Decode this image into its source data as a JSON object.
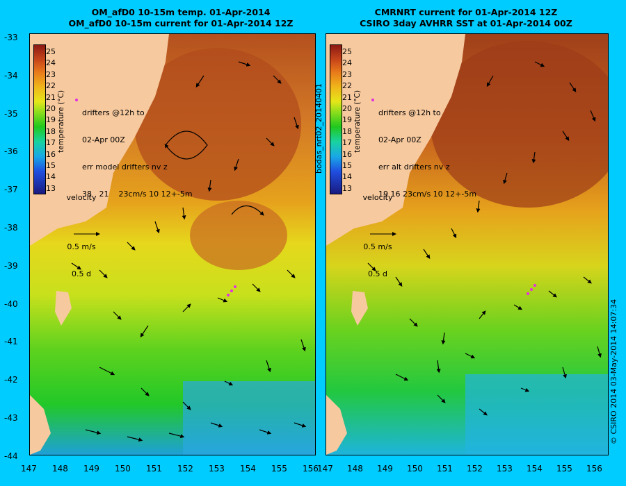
{
  "left_panel": {
    "title_line1": "OM_afD0 10-15m temp. 01-Apr-2014",
    "title_line2": "OM_afD0 10-15m current for 01-Apr-2014 12Z",
    "legend": {
      "drifters_line1": "drifters @12h to",
      "drifters_line2": "02-Apr 00Z",
      "drifters_line3": "err model drifters nv z",
      "drifters_line4": "38   21    23cm/s 10 12+-5m"
    }
  },
  "right_panel": {
    "title_line1": "CMRNRT current for 01-Apr-2014 12Z",
    "title_line2": "CSIRO 3day AVHRR SST at 01-Apr-2014 00Z",
    "legend": {
      "drifters_line1": "drifters @12h to",
      "drifters_line2": "02-Apr 00Z",
      "drifters_line3": "err alt drifters nv z",
      "drifters_line4": "19 16 23cm/s 10 12+-5m"
    }
  },
  "colorbar": {
    "label": "temperature (°C)",
    "ticks": [
      "25",
      "24",
      "23",
      "22",
      "21",
      "20",
      "19",
      "18",
      "17",
      "16",
      "15",
      "14",
      "13"
    ]
  },
  "velocity_legend": {
    "label": "velocity",
    "speed": "0.5 m/s",
    "duration": "0.5 d"
  },
  "y_axis_ticks": [
    "-33",
    "-34",
    "-35",
    "-36",
    "-37",
    "-38",
    "-39",
    "-40",
    "-41",
    "-42",
    "-43",
    "-44"
  ],
  "x_axis_ticks": [
    "147",
    "148",
    "149",
    "150",
    "151",
    "152",
    "153",
    "154",
    "155",
    "156"
  ],
  "side_label": "bodas_nrt02_20140401",
  "copyright": "© CSIRO 2014  03-May-2014 14:07:34",
  "colors": {
    "background": "#00ccff",
    "land": "#f7c99e",
    "warm": "#c8561e",
    "mid": "#f0c21c",
    "cool": "#21c81e"
  }
}
